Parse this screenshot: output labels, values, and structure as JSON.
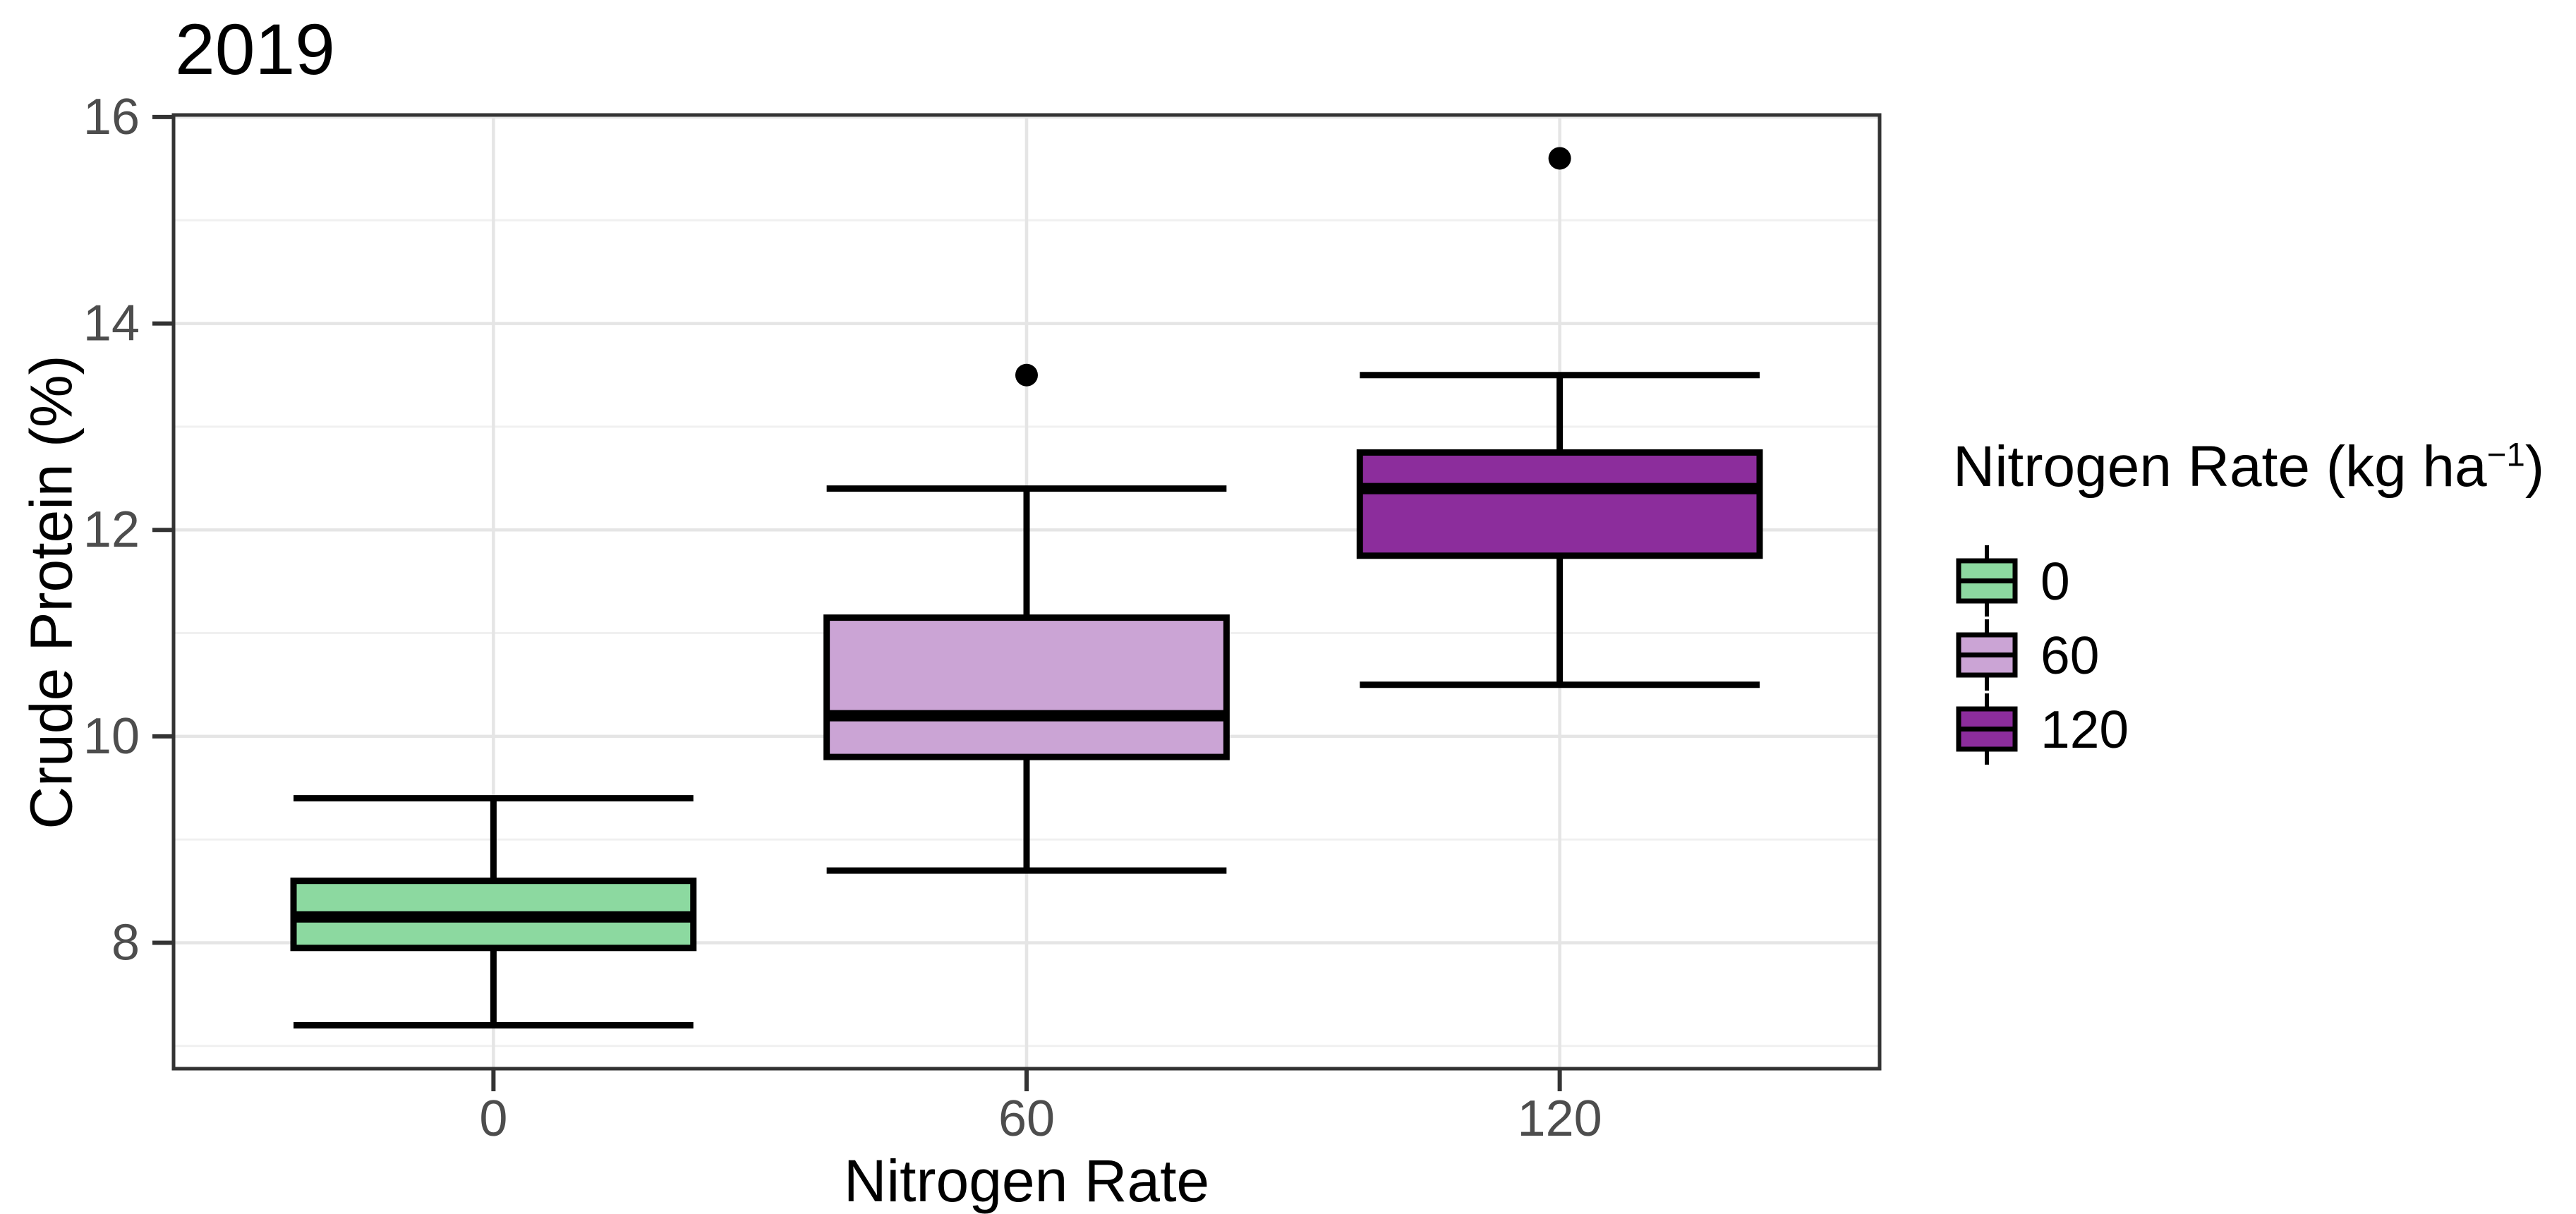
{
  "chart_data": {
    "type": "boxplot",
    "title": "2019",
    "xlabel": "Nitrogen Rate",
    "ylabel": "Crude Protein (%)",
    "categories": [
      "0",
      "60",
      "120"
    ],
    "y_ticks": [
      8,
      10,
      12,
      14,
      16
    ],
    "y_minor_gridlines": [
      7,
      9,
      11,
      13,
      15
    ],
    "ylim": [
      6.78,
      16.02
    ],
    "grid": true,
    "legend": {
      "position": "right",
      "title_main": "Nitrogen Rate (kg ha",
      "title_sup": "−1",
      "title_end": ")",
      "entries": [
        {
          "label": "0",
          "color": "#8CD9A0"
        },
        {
          "label": "60",
          "color": "#CBA4D5"
        },
        {
          "label": "120",
          "color": "#8C2D9C"
        }
      ]
    },
    "series": [
      {
        "category": "0",
        "color": "#8CD9A0",
        "whisker_low": 7.2,
        "q1": 7.95,
        "median": 8.25,
        "q3": 8.6,
        "whisker_high": 9.4,
        "outliers": []
      },
      {
        "category": "60",
        "color": "#CBA4D5",
        "whisker_low": 8.7,
        "q1": 9.8,
        "median": 10.2,
        "q3": 11.15,
        "whisker_high": 12.4,
        "outliers": [
          13.5
        ]
      },
      {
        "category": "120",
        "color": "#8C2D9C",
        "whisker_low": 10.5,
        "q1": 11.75,
        "median": 12.4,
        "q3": 12.75,
        "whisker_high": 13.5,
        "outliers": [
          15.6
        ]
      }
    ],
    "colors": {
      "panel_border": "#333333",
      "major_grid": "#e5e5e5",
      "minor_grid": "#f0f0f0",
      "vertical_grid": "#e5e5e5",
      "tick_mark": "#333333",
      "tick_label": "#4d4d4d",
      "box_stroke": "#000000",
      "outlier": "#000000"
    }
  }
}
